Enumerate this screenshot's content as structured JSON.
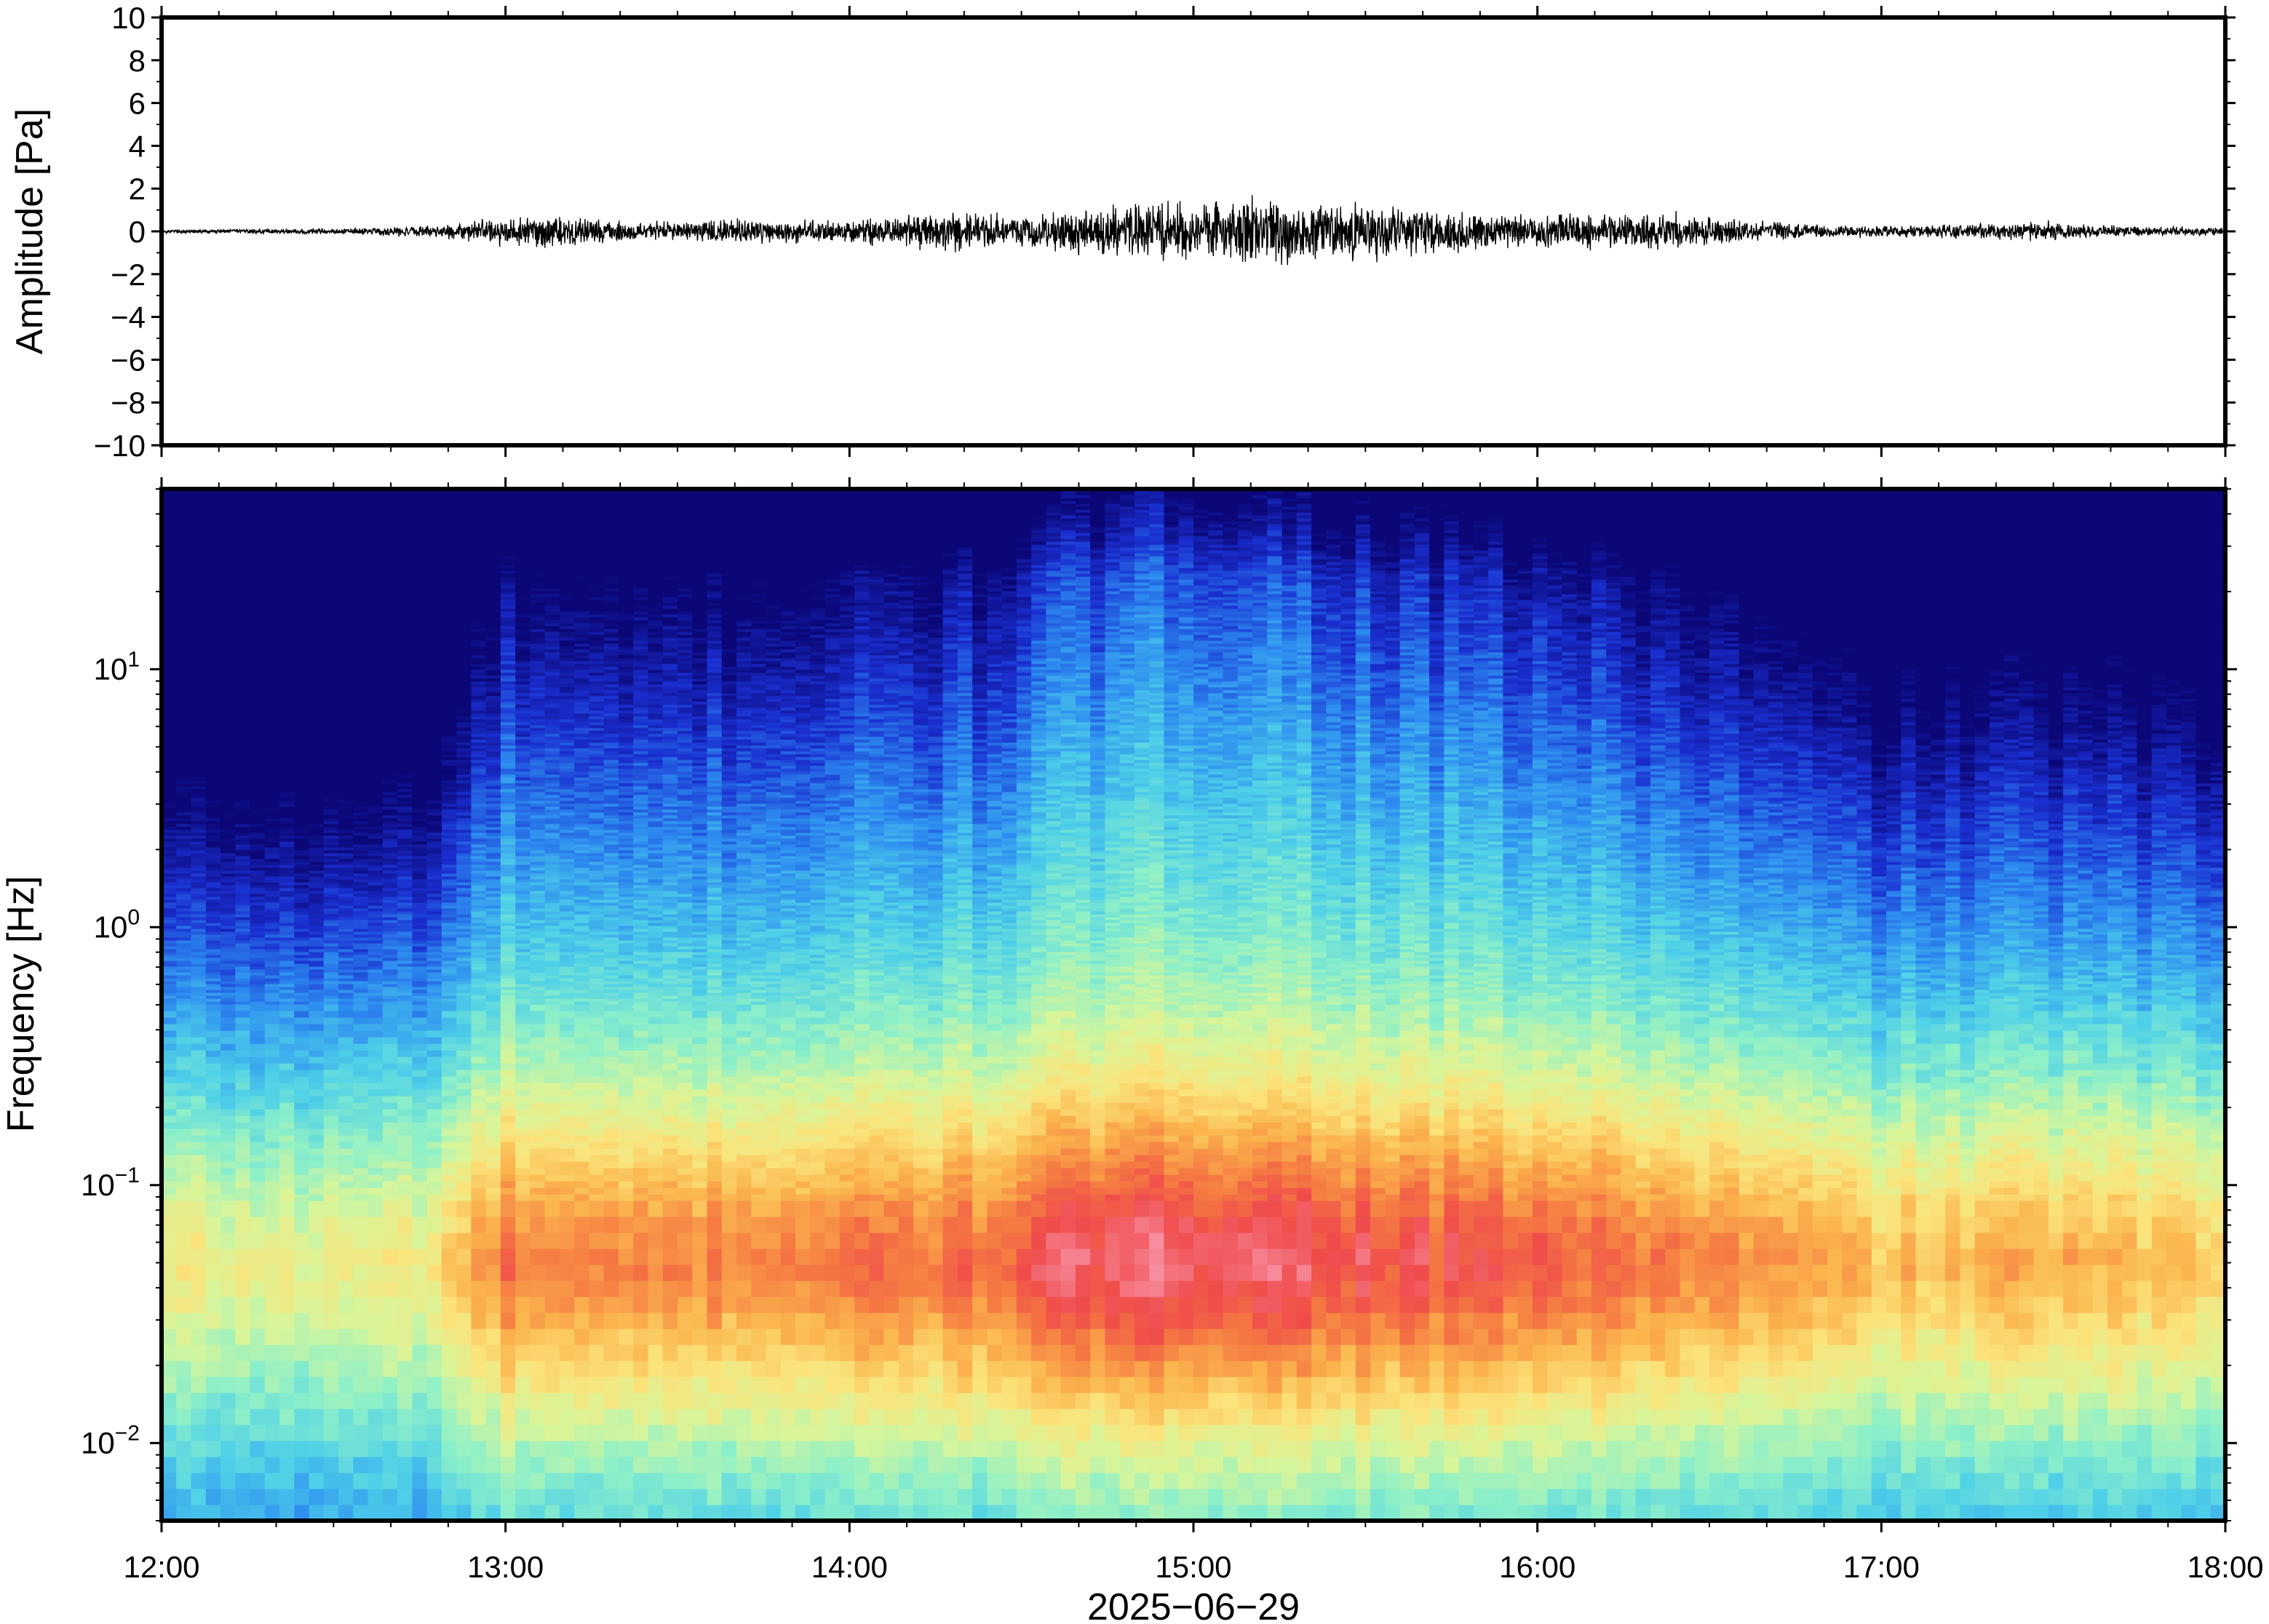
{
  "chart_data": [
    {
      "type": "line",
      "panel": "waveform",
      "ylabel": "Amplitude [Pa]",
      "ylim": [
        -10,
        10
      ],
      "yticks": [
        10,
        8,
        6,
        4,
        2,
        0,
        -2,
        -4,
        -6,
        -8,
        -10
      ],
      "ytick_labels": [
        "10",
        "8",
        "6",
        "4",
        "2",
        "0",
        "−2",
        "−4",
        "−6",
        "−8",
        "−10"
      ],
      "x_range_hours": [
        12,
        18
      ],
      "amplitude_envelope": {
        "time_hours": [
          12.0,
          12.5,
          12.8,
          13.0,
          13.1,
          13.3,
          13.5,
          13.7,
          13.9,
          14.1,
          14.3,
          14.45,
          14.55,
          14.8,
          15.0,
          15.2,
          15.4,
          15.6,
          15.8,
          16.0,
          16.2,
          16.4,
          16.6,
          16.8,
          17.0,
          17.3,
          17.5,
          17.7,
          18.0
        ],
        "peak_pa": [
          0.1,
          0.15,
          0.3,
          0.8,
          0.9,
          0.6,
          0.5,
          0.7,
          0.6,
          0.7,
          1.1,
          0.8,
          1.1,
          1.4,
          1.6,
          1.8,
          1.5,
          1.4,
          1.0,
          0.9,
          1.0,
          0.9,
          0.6,
          0.4,
          0.3,
          0.4,
          0.5,
          0.3,
          0.2
        ]
      }
    },
    {
      "type": "heatmap",
      "panel": "spectrogram",
      "ylabel": "Frequency [Hz]",
      "yscale": "log",
      "ylim": [
        0.005,
        50
      ],
      "yticks": [
        10,
        1,
        0.1,
        0.01
      ],
      "ytick_labels": [
        {
          "base": "10",
          "exp": "1"
        },
        {
          "base": "10",
          "exp": "0"
        },
        {
          "base": "10",
          "exp": "−1"
        },
        {
          "base": "10",
          "exp": "−2"
        }
      ],
      "xlabel": "2025−06−29",
      "x_range_hours": [
        12,
        18
      ],
      "xticks": [
        "12:00",
        "13:00",
        "14:00",
        "15:00",
        "16:00",
        "17:00",
        "18:00"
      ],
      "colormap": "jet-like",
      "intensity_profile": {
        "time_hours": [
          12.0,
          12.5,
          12.8,
          13.0,
          13.3,
          13.5,
          14.0,
          14.4,
          14.6,
          15.0,
          15.3,
          15.6,
          16.0,
          16.5,
          17.0,
          17.5,
          18.0
        ],
        "relative_level": [
          0.25,
          0.2,
          0.3,
          0.7,
          0.6,
          0.65,
          0.7,
          0.75,
          0.9,
          1.0,
          0.95,
          0.85,
          0.8,
          0.65,
          0.45,
          0.5,
          0.4
        ]
      },
      "peak_frequency_hz": 0.05,
      "colors": [
        "#0b0777",
        "#1a2fd0",
        "#2d8cf0",
        "#4fd0e8",
        "#8ef0c8",
        "#d8f59a",
        "#fbe37a",
        "#fbb44e",
        "#f57b42",
        "#ef4b4b",
        "#f78ea0"
      ]
    }
  ]
}
